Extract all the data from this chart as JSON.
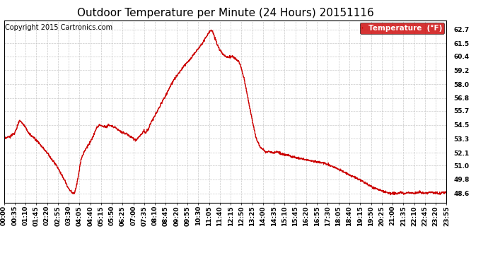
{
  "title": "Outdoor Temperature per Minute (24 Hours) 20151116",
  "copyright": "Copyright 2015 Cartronics.com",
  "legend_label": "Temperature  (°F)",
  "line_color": "#cc0000",
  "legend_bg": "#cc0000",
  "legend_text_color": "#ffffff",
  "background_color": "#ffffff",
  "grid_color": "#bbbbbb",
  "yticks": [
    48.6,
    49.8,
    51.0,
    52.1,
    53.3,
    54.5,
    55.7,
    56.8,
    58.0,
    59.2,
    60.4,
    61.5,
    62.7
  ],
  "ylim": [
    47.8,
    63.5
  ],
  "x_tick_labels": [
    "00:00",
    "00:35",
    "01:10",
    "01:45",
    "02:20",
    "02:55",
    "03:30",
    "04:05",
    "04:40",
    "05:15",
    "05:50",
    "06:25",
    "07:00",
    "07:35",
    "08:10",
    "08:45",
    "09:20",
    "09:55",
    "10:30",
    "11:05",
    "11:40",
    "12:15",
    "12:50",
    "13:25",
    "14:00",
    "14:35",
    "15:10",
    "15:45",
    "16:20",
    "16:55",
    "17:30",
    "18:05",
    "18:40",
    "19:15",
    "19:50",
    "20:25",
    "21:00",
    "21:35",
    "22:10",
    "22:45",
    "23:20",
    "23:55"
  ],
  "title_fontsize": 11,
  "tick_fontsize": 6.5,
  "copyright_fontsize": 7,
  "keypoints": [
    [
      0,
      53.3
    ],
    [
      20,
      53.5
    ],
    [
      35,
      53.8
    ],
    [
      50,
      54.9
    ],
    [
      65,
      54.5
    ],
    [
      80,
      53.8
    ],
    [
      90,
      53.5
    ],
    [
      100,
      53.3
    ],
    [
      110,
      53.0
    ],
    [
      120,
      52.7
    ],
    [
      130,
      52.4
    ],
    [
      140,
      52.1
    ],
    [
      150,
      51.7
    ],
    [
      165,
      51.2
    ],
    [
      180,
      50.6
    ],
    [
      195,
      49.8
    ],
    [
      210,
      49.0
    ],
    [
      220,
      48.7
    ],
    [
      228,
      48.6
    ],
    [
      235,
      49.2
    ],
    [
      242,
      50.2
    ],
    [
      250,
      51.5
    ],
    [
      260,
      52.2
    ],
    [
      270,
      52.6
    ],
    [
      280,
      53.0
    ],
    [
      290,
      53.5
    ],
    [
      300,
      54.2
    ],
    [
      310,
      54.5
    ],
    [
      320,
      54.4
    ],
    [
      330,
      54.3
    ],
    [
      340,
      54.5
    ],
    [
      350,
      54.4
    ],
    [
      360,
      54.3
    ],
    [
      375,
      54.0
    ],
    [
      390,
      53.8
    ],
    [
      400,
      53.7
    ],
    [
      410,
      53.5
    ],
    [
      420,
      53.3
    ],
    [
      430,
      53.2
    ],
    [
      440,
      53.5
    ],
    [
      450,
      53.8
    ],
    [
      455,
      54.0
    ],
    [
      460,
      53.8
    ],
    [
      470,
      54.2
    ],
    [
      480,
      54.8
    ],
    [
      495,
      55.5
    ],
    [
      510,
      56.3
    ],
    [
      525,
      57.0
    ],
    [
      540,
      57.8
    ],
    [
      555,
      58.5
    ],
    [
      570,
      59.0
    ],
    [
      585,
      59.6
    ],
    [
      600,
      60.0
    ],
    [
      615,
      60.5
    ],
    [
      630,
      61.0
    ],
    [
      645,
      61.5
    ],
    [
      655,
      62.0
    ],
    [
      665,
      62.4
    ],
    [
      672,
      62.7
    ],
    [
      678,
      62.5
    ],
    [
      685,
      62.0
    ],
    [
      692,
      61.5
    ],
    [
      700,
      61.0
    ],
    [
      710,
      60.6
    ],
    [
      720,
      60.4
    ],
    [
      730,
      60.3
    ],
    [
      740,
      60.4
    ],
    [
      748,
      60.3
    ],
    [
      755,
      60.1
    ],
    [
      762,
      60.0
    ],
    [
      770,
      59.5
    ],
    [
      780,
      58.5
    ],
    [
      790,
      57.2
    ],
    [
      800,
      55.8
    ],
    [
      810,
      54.5
    ],
    [
      818,
      53.5
    ],
    [
      825,
      53.0
    ],
    [
      832,
      52.6
    ],
    [
      840,
      52.4
    ],
    [
      850,
      52.2
    ],
    [
      862,
      52.2
    ],
    [
      875,
      52.1
    ],
    [
      888,
      52.2
    ],
    [
      900,
      52.0
    ],
    [
      920,
      51.9
    ],
    [
      940,
      51.7
    ],
    [
      960,
      51.6
    ],
    [
      980,
      51.5
    ],
    [
      1000,
      51.4
    ],
    [
      1020,
      51.3
    ],
    [
      1040,
      51.2
    ],
    [
      1060,
      51.0
    ],
    [
      1080,
      50.8
    ],
    [
      1100,
      50.5
    ],
    [
      1120,
      50.2
    ],
    [
      1140,
      50.0
    ],
    [
      1160,
      49.7
    ],
    [
      1180,
      49.4
    ],
    [
      1200,
      49.1
    ],
    [
      1220,
      48.9
    ],
    [
      1240,
      48.7
    ],
    [
      1260,
      48.6
    ],
    [
      1280,
      48.6
    ],
    [
      1290,
      48.7
    ],
    [
      1300,
      48.6
    ],
    [
      1315,
      48.7
    ],
    [
      1330,
      48.6
    ],
    [
      1350,
      48.7
    ],
    [
      1370,
      48.6
    ],
    [
      1390,
      48.7
    ],
    [
      1410,
      48.6
    ],
    [
      1430,
      48.7
    ],
    [
      1439,
      48.7
    ]
  ]
}
